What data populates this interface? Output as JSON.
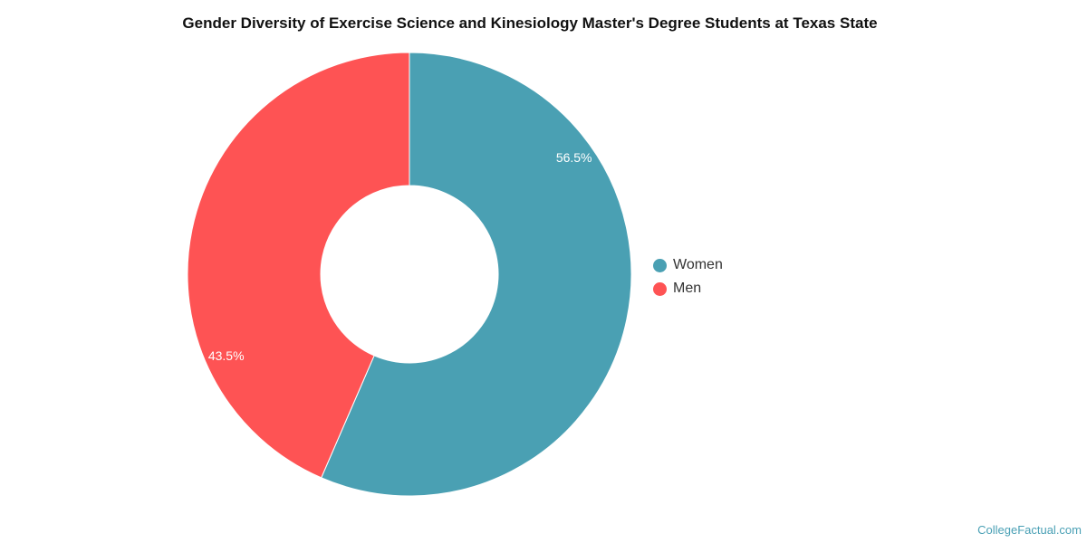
{
  "chart_data": {
    "type": "pie",
    "style": "donut",
    "title": "Gender Diversity of Exercise Science and Kinesiology Master's Degree Students at Texas State",
    "categories": [
      "Women",
      "Men"
    ],
    "values": [
      56.5,
      43.5
    ],
    "labels": [
      "56.5%",
      "43.5%"
    ],
    "colors": [
      "#4aa0b3",
      "#fe5354"
    ],
    "legend_position": "right"
  },
  "watermark": "CollegeFactual.com"
}
